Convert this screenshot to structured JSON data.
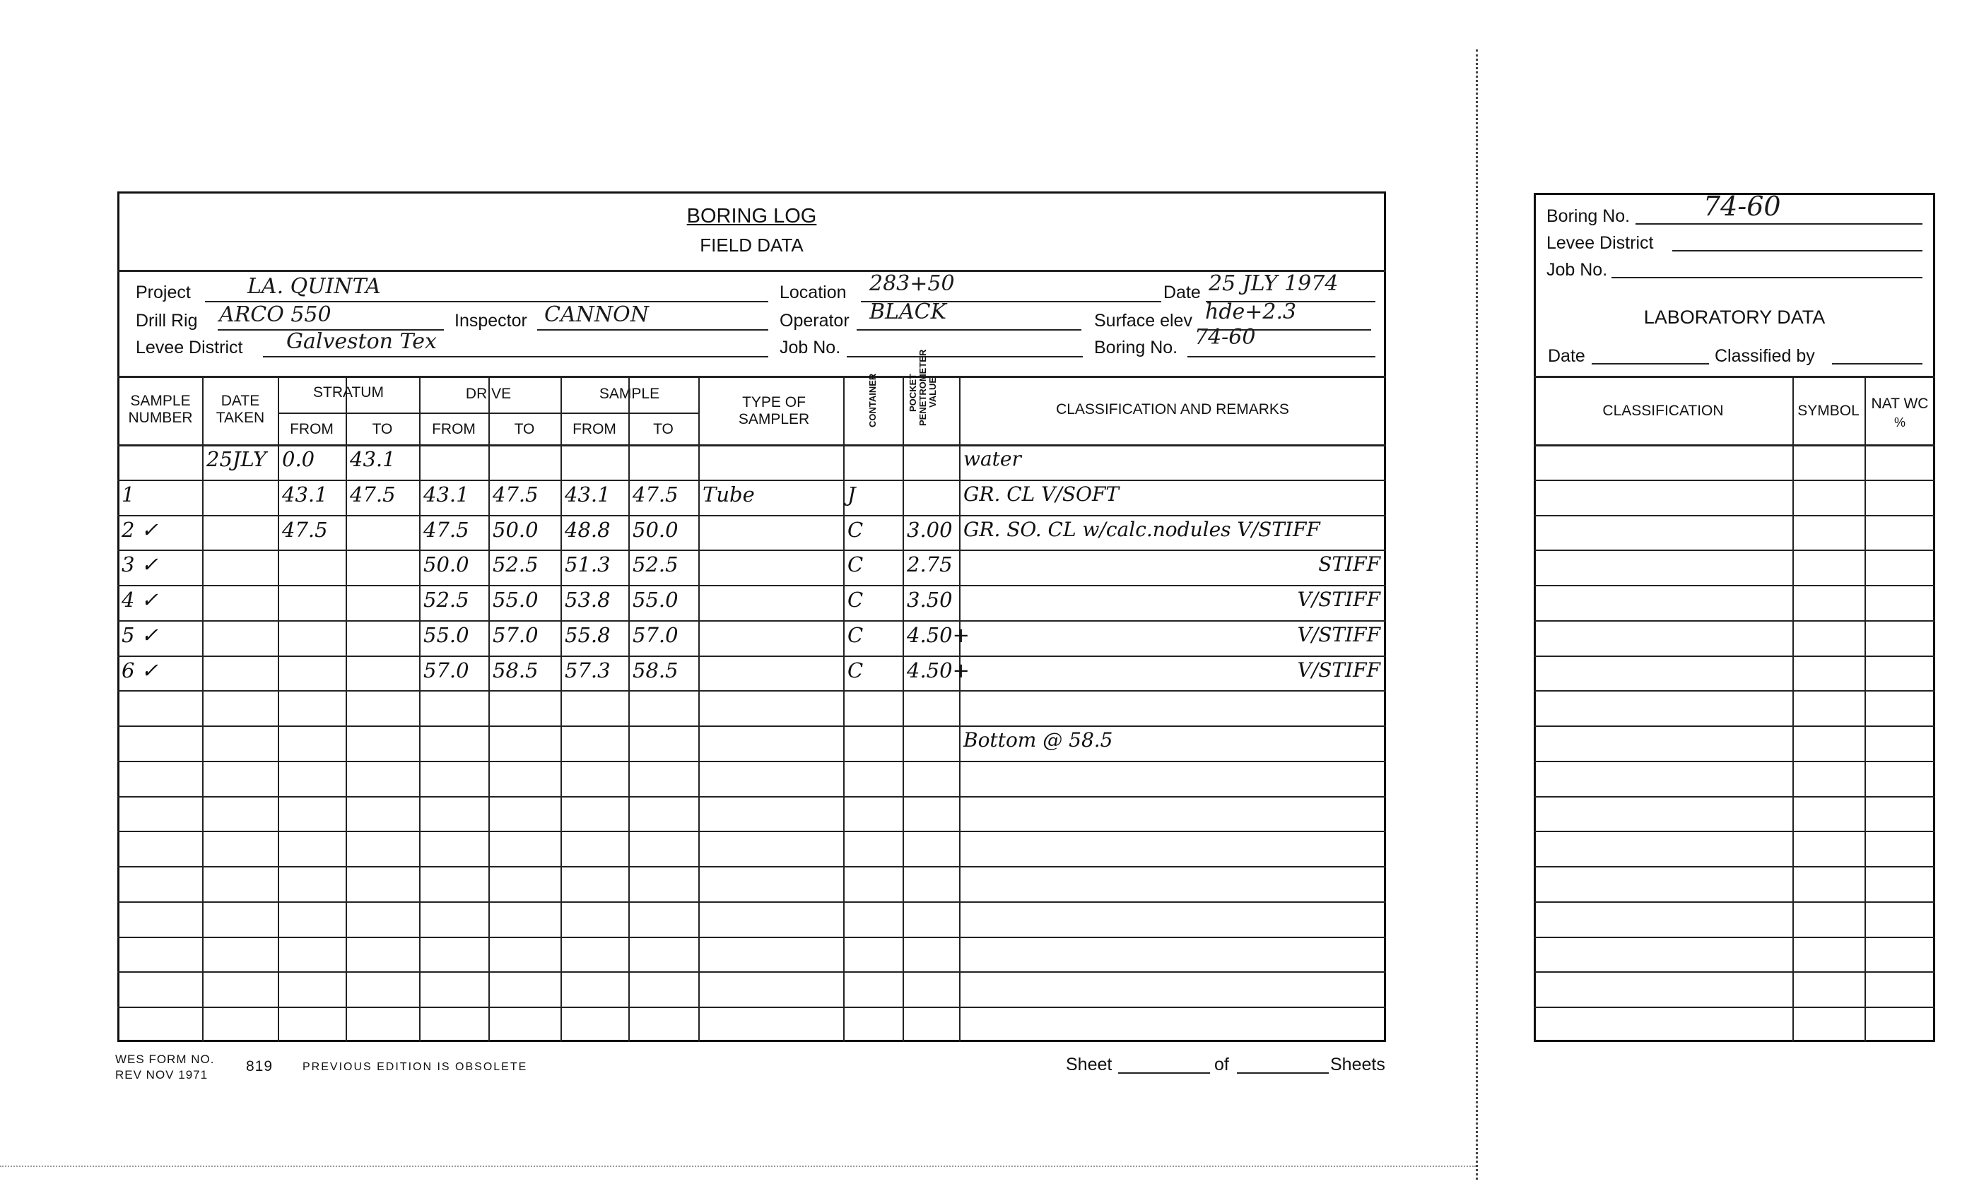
{
  "field_form": {
    "title": "BORING LOG",
    "subtitle": "FIELD DATA",
    "fields": {
      "project": {
        "label": "Project",
        "value": "LA. QUINTA"
      },
      "drill_rig": {
        "label": "Drill Rig",
        "value": "ARCO 550"
      },
      "inspector": {
        "label": "Inspector",
        "value": "CANNON"
      },
      "levee_district": {
        "label": "Levee District",
        "value": "Galveston Tex"
      },
      "location": {
        "label": "Location",
        "value": "283+50"
      },
      "operator": {
        "label": "Operator",
        "value": "BLACK"
      },
      "job_no": {
        "label": "Job No.",
        "value": ""
      },
      "date": {
        "label": "Date",
        "value": "25 JLY 1974"
      },
      "surface_elev": {
        "label": "Surface elev",
        "value": "hde+2.3"
      },
      "boring_no": {
        "label": "Boring No.",
        "value": "74-60"
      }
    },
    "headers": {
      "sample_number": "SAMPLE NUMBER",
      "date_taken": "DATE TAKEN",
      "stratum": "STRATUM",
      "drive": "DRIVE",
      "sample": "SAMPLE",
      "from": "FROM",
      "to": "TO",
      "type_of_sampler": "TYPE OF SAMPLER",
      "container": "CONTAINER",
      "pocket_penetrometer": "POCKET PENETROMETER VALUE",
      "classification": "CLASSIFICATION AND REMARKS"
    },
    "rows": [
      [
        "",
        "25JLY",
        "0.0",
        "43.1",
        "",
        "",
        "",
        "",
        "",
        "",
        "",
        "water"
      ],
      [
        "1",
        "",
        "43.1",
        "47.5",
        "43.1",
        "47.5",
        "43.1",
        "47.5",
        "Tube",
        "J",
        "",
        "GR. CL V/SOFT"
      ],
      [
        "2 ✓",
        "",
        "47.5",
        "",
        "47.5",
        "50.0",
        "48.8",
        "50.0",
        "",
        "C",
        "3.00",
        "GR. SO. CL w/calc.nodules V/STIFF"
      ],
      [
        "3 ✓",
        "",
        "",
        "",
        "50.0",
        "52.5",
        "51.3",
        "52.5",
        "",
        "C",
        "2.75",
        "STIFF"
      ],
      [
        "4 ✓",
        "",
        "",
        "",
        "52.5",
        "55.0",
        "53.8",
        "55.0",
        "",
        "C",
        "3.50",
        "V/STIFF"
      ],
      [
        "5 ✓",
        "",
        "",
        "",
        "55.0",
        "57.0",
        "55.8",
        "57.0",
        "",
        "C",
        "4.50+",
        "V/STIFF"
      ],
      [
        "6 ✓",
        "",
        "",
        "",
        "57.0",
        "58.5",
        "57.3",
        "58.5",
        "",
        "C",
        "4.50+",
        "V/STIFF"
      ],
      [
        "",
        "",
        "",
        "",
        "",
        "",
        "",
        "",
        "",
        "",
        "",
        ""
      ],
      [
        "",
        "",
        "",
        "",
        "",
        "",
        "",
        "",
        "",
        "",
        "",
        "Bottom @ 58.5"
      ],
      [
        "",
        "",
        "",
        "",
        "",
        "",
        "",
        "",
        "",
        "",
        "",
        ""
      ],
      [
        "",
        "",
        "",
        "",
        "",
        "",
        "",
        "",
        "",
        "",
        "",
        ""
      ],
      [
        "",
        "",
        "",
        "",
        "",
        "",
        "",
        "",
        "",
        "",
        "",
        ""
      ],
      [
        "",
        "",
        "",
        "",
        "",
        "",
        "",
        "",
        "",
        "",
        "",
        ""
      ],
      [
        "",
        "",
        "",
        "",
        "",
        "",
        "",
        "",
        "",
        "",
        "",
        ""
      ],
      [
        "",
        "",
        "",
        "",
        "",
        "",
        "",
        "",
        "",
        "",
        "",
        ""
      ],
      [
        "",
        "",
        "",
        "",
        "",
        "",
        "",
        "",
        "",
        "",
        "",
        ""
      ],
      [
        "",
        "",
        "",
        "",
        "",
        "",
        "",
        "",
        "",
        "",
        "",
        ""
      ]
    ],
    "footer": {
      "form_no": "WES FORM NO.",
      "rev": "REV NOV 1971",
      "number": "819",
      "obsolete": "PREVIOUS EDITION IS OBSOLETE",
      "sheet": "Sheet",
      "of": "of",
      "sheets": "Sheets"
    }
  },
  "lab_form": {
    "boring_no": {
      "label": "Boring No.",
      "value": "74-60"
    },
    "levee_district": {
      "label": "Levee District",
      "value": ""
    },
    "job_no": {
      "label": "Job No.",
      "value": ""
    },
    "title": "LABORATORY DATA",
    "date": {
      "label": "Date",
      "value": ""
    },
    "classified_by": {
      "label": "Classified by",
      "value": ""
    },
    "headers": {
      "classification": "CLASSIFICATION",
      "symbol": "SYMBOL",
      "nat_wc": "NAT WC",
      "percent": "%"
    }
  }
}
